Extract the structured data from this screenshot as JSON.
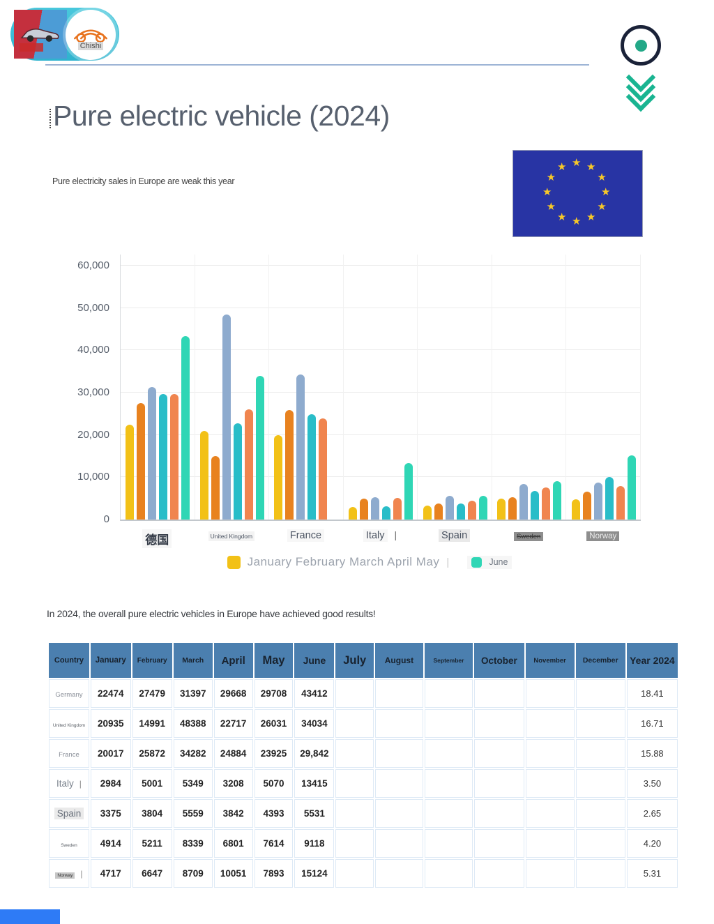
{
  "header": {
    "brand_label": "Chishi"
  },
  "page": {
    "title": "Pure electric vehicle (2024)",
    "subtitle": "Pure electricity sales in Europe are weak this year",
    "below_chart_text": "In 2024, the overall pure electric vehicles in Europe have achieved good results!"
  },
  "eu_flag": {
    "star_count": 12,
    "bg": "#2834A4",
    "star_color": "#F7C829"
  },
  "artifacts": {
    "cursor": "|"
  },
  "chart_data": {
    "type": "bar",
    "title": "",
    "xlabel": "",
    "ylabel": "",
    "ylim": [
      0,
      60000
    ],
    "yticks": [
      0,
      10000,
      20000,
      30000,
      40000,
      50000,
      60000
    ],
    "ytick_labels": [
      "0",
      "10,000",
      "20,000",
      "30,000",
      "40,000",
      "50,000",
      "60,000"
    ],
    "grid": true,
    "legend_position": "bottom",
    "categories": [
      {
        "label": "德国",
        "style": "xl",
        "suffix": ""
      },
      {
        "label": "United Kingdom",
        "style": "tiny",
        "suffix": ""
      },
      {
        "label": "France",
        "style": "md",
        "suffix": ""
      },
      {
        "label": "Italy",
        "style": "md",
        "suffix": "|"
      },
      {
        "label": "Spain",
        "style": "md hl-light",
        "suffix": ""
      },
      {
        "label": "Sweden",
        "style": "sm hl-dark dark-text strike",
        "suffix": ""
      },
      {
        "label": "Norway",
        "style": "md2 hl-dark",
        "suffix": ""
      }
    ],
    "series": [
      {
        "name": "January",
        "color": "#F2C117",
        "values": [
          22474,
          20935,
          20017,
          2984,
          3375,
          4914,
          4717
        ]
      },
      {
        "name": "February",
        "color": "#E8821F",
        "values": [
          27479,
          14991,
          25872,
          5001,
          3804,
          5211,
          6647
        ]
      },
      {
        "name": "March",
        "color": "#8EABCE",
        "values": [
          31397,
          48388,
          34282,
          5349,
          5559,
          8339,
          8709
        ]
      },
      {
        "name": "April",
        "color": "#29BDC8",
        "values": [
          29668,
          22717,
          24884,
          3208,
          3842,
          6801,
          10051
        ]
      },
      {
        "name": "May",
        "color": "#F0854F",
        "values": [
          29708,
          26031,
          23925,
          5070,
          4393,
          7614,
          7893
        ]
      },
      {
        "name": "June",
        "color": "#2FD6B5",
        "values": [
          43412,
          34034,
          null,
          13415,
          5531,
          9118,
          15124
        ]
      }
    ],
    "legend": [
      {
        "label": "January February March April May",
        "color": "#F2C117",
        "size": "lg"
      },
      {
        "label": "June",
        "color": "#2FD6B5",
        "size": "sm"
      }
    ]
  },
  "table": {
    "headers": [
      {
        "label": "Country",
        "size": 11
      },
      {
        "label": "January",
        "size": 11.5
      },
      {
        "label": "February",
        "size": 10
      },
      {
        "label": "March",
        "size": 10.5
      },
      {
        "label": "April",
        "size": 15
      },
      {
        "label": "May",
        "size": 16.5
      },
      {
        "label": "June",
        "size": 14
      },
      {
        "label": "July",
        "size": 16.5
      },
      {
        "label": "August",
        "size": 12
      },
      {
        "label": "September",
        "size": 8.5
      },
      {
        "label": "October",
        "size": 13.5
      },
      {
        "label": "November",
        "size": 9.5
      },
      {
        "label": "December",
        "size": 10.5
      },
      {
        "label": "Year 2024",
        "size": 14
      }
    ],
    "rows": [
      {
        "country": "Germany",
        "country_style": "c-sm",
        "country_suffix": "",
        "values": [
          "22474",
          "27479",
          "31397",
          "29668",
          "29708",
          "43412"
        ],
        "year": "18.41"
      },
      {
        "country": "United Kingdom",
        "country_style": "c-xs",
        "country_suffix": "",
        "values": [
          "20935",
          "14991",
          "48388",
          "22717",
          "26031",
          "34034"
        ],
        "year": "16.71"
      },
      {
        "country": "France",
        "country_style": "c-sm",
        "country_suffix": "",
        "values": [
          "20017",
          "25872",
          "34282",
          "24884",
          "23925",
          "29,842"
        ],
        "year": "15.88"
      },
      {
        "country": "Italy",
        "country_style": "c-md",
        "country_suffix": "|",
        "values": [
          "2984",
          "5001",
          "5349",
          "3208",
          "5070",
          "13415"
        ],
        "year": "3.50"
      },
      {
        "country": "Spain",
        "country_style": "c-md c-hl",
        "country_suffix": "",
        "values": [
          "3375",
          "3804",
          "5559",
          "3842",
          "4393",
          "5531"
        ],
        "year": "2.65"
      },
      {
        "country": "Sweden",
        "country_style": "c-xs",
        "country_suffix": "",
        "values": [
          "4914",
          "5211",
          "8339",
          "6801",
          "7614",
          "9118"
        ],
        "year": "4.20"
      },
      {
        "country": "Norway",
        "country_style": "c-xs c-dk",
        "country_suffix": "|",
        "values": [
          "4717",
          "6647",
          "8709",
          "10051",
          "7893",
          "15124"
        ],
        "year": "5.31"
      }
    ]
  },
  "footer": {
    "accent_color": "#2E7BF6"
  }
}
